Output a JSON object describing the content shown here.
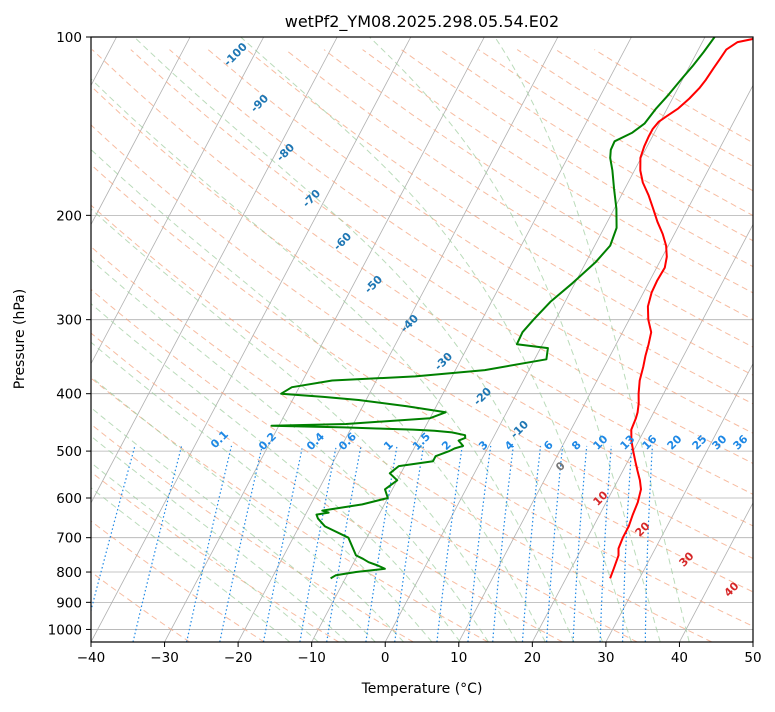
{
  "chart_data": {
    "type": "line",
    "title": "wetPf2_YM08.2025.298.05.54.E02",
    "xlabel": "Temperature (°C)",
    "ylabel": "Pressure (hPa)",
    "xlim": [
      -40,
      50
    ],
    "ylim": [
      1050,
      100
    ],
    "y_scale": "log",
    "grid": true,
    "x_ticks": [
      -40,
      -30,
      -20,
      -10,
      0,
      10,
      20,
      30,
      40,
      50
    ],
    "y_ticks": [
      100,
      200,
      300,
      400,
      500,
      600,
      700,
      800,
      900,
      1000
    ],
    "skew_labels": [
      "-100",
      "-90",
      "-80",
      "-70",
      "-60",
      "-50",
      "-40",
      "-30",
      "-20",
      "-10"
    ],
    "mixing_ratio_labels": [
      "0.1",
      "0.2",
      "0.4",
      "0.6",
      "1",
      "1.5",
      "2",
      "3",
      "4",
      "6",
      "8",
      "10",
      "13",
      "16",
      "20",
      "25",
      "30",
      "36"
    ],
    "dry_adiabat_labels": [
      "0",
      "10",
      "20",
      "30",
      "40"
    ],
    "colors": {
      "temperature": "#ff0000",
      "dewpoint": "#008000",
      "skew_label": "#1f77b4",
      "mixing_ratio": "#1e88e5",
      "dry_adiabat": "#d62728",
      "moist_adiabat": "#2ca02c",
      "grid": "#b0b0b0"
    },
    "series": [
      {
        "key": "temperature",
        "x": [
          26.0,
          25.8,
          25.5,
          25.0,
          24.8,
          24.8,
          24.5,
          24.3,
          23.8,
          23.0,
          22.0,
          21.0,
          20.0,
          19.0,
          18.2,
          18.0,
          17.8,
          17.3,
          16.6,
          15.8,
          15.3,
          14.8,
          14.4,
          13.9,
          12.6,
          11.6,
          11.1,
          11.0,
          11.1,
          10.6,
          9.7,
          8.4,
          6.8,
          5.3,
          3.7,
          2.0,
          0.8,
          -0.1,
          -0.4,
          -0.5,
          -0.5,
          -0.2,
          0.5,
          1.5,
          2.3,
          2.9,
          3.2,
          3.4,
          3.6,
          3.8,
          4.8,
          7.8,
          8.5
        ],
        "y": [
          820,
          790,
          750,
          730,
          700,
          670,
          640,
          610,
          580,
          560,
          540,
          520,
          500,
          480,
          460,
          440,
          430,
          415,
          400,
          380,
          360,
          345,
          330,
          315,
          300,
          285,
          270,
          258,
          245,
          235,
          225,
          215,
          205,
          195,
          185,
          176,
          168,
          160,
          153,
          147,
          143,
          139,
          136,
          132,
          127,
          122,
          118,
          113,
          109,
          105,
          102,
          100,
          99
        ]
      },
      {
        "key": "dewpoint",
        "x": [
          -12.0,
          -11.5,
          -9.0,
          -5.3,
          -6.5,
          -8.0,
          -9.0,
          -10.2,
          -12.5,
          -16.5,
          -18.0,
          -18.5,
          -17.0,
          -18.0,
          -13.0,
          -10.0,
          -10.5,
          -11.0,
          -10.0,
          -11.5,
          -10.8,
          -6.5,
          -6.5,
          -5.0,
          -4.5,
          -3.5,
          -4.5,
          -3.8,
          -4.0,
          -6.0,
          -8.5,
          -11.5,
          -16.5,
          -21.0,
          -25.0,
          -31.0,
          -21.0,
          -10.0,
          -8.3,
          -14.0,
          -21.0,
          -26.0,
          -32.0,
          -31.0,
          -26.0,
          -15.0,
          -6.0,
          1.6,
          1.0,
          -3.5,
          -3.6,
          -3.0,
          -2.0,
          -0.3,
          1.3,
          2.1,
          1.7,
          0.3,
          -1.5,
          -3.0,
          -4.2,
          -4.7,
          -4.8,
          -3.0,
          -2.0,
          -1.5,
          -0.8,
          -0.2,
          0.4,
          0.9,
          1.3
        ],
        "y": [
          820,
          810,
          800,
          790,
          780,
          770,
          760,
          750,
          700,
          670,
          650,
          640,
          635,
          630,
          615,
          600,
          590,
          580,
          560,
          545,
          530,
          520,
          510,
          500,
          495,
          490,
          480,
          475,
          470,
          465,
          462,
          460,
          458,
          456,
          455,
          453,
          450,
          440,
          430,
          420,
          410,
          405,
          400,
          390,
          380,
          374,
          365,
          350,
          335,
          330,
          315,
          300,
          280,
          260,
          240,
          225,
          210,
          195,
          180,
          168,
          160,
          155,
          150,
          145,
          140,
          132,
          125,
          118,
          112,
          106,
          100
        ]
      }
    ]
  }
}
